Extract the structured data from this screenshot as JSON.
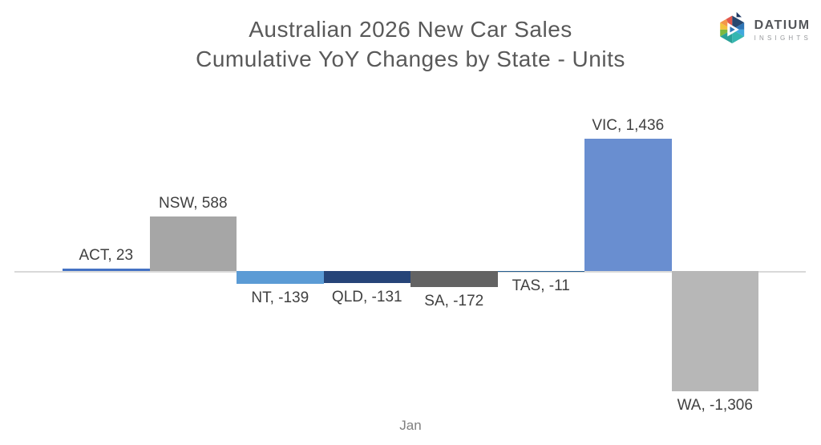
{
  "title": {
    "line1": "Australian 2026 New Car Sales",
    "line2": "Cumulative YoY Changes by State - Units"
  },
  "logo": {
    "brand": "DATIUM",
    "subbrand": "INSIGHTS"
  },
  "chart_data": {
    "type": "bar",
    "title": "Australian 2026 New Car Sales",
    "subtitle": "Cumulative YoY Changes by State - Units",
    "categories": [
      "Jan"
    ],
    "series": [
      {
        "name": "ACT",
        "values": [
          23
        ],
        "label": "ACT, 23",
        "color": "#4472C4"
      },
      {
        "name": "NSW",
        "values": [
          588
        ],
        "label": "NSW, 588",
        "color": "#A6A6A6"
      },
      {
        "name": "NT",
        "values": [
          -139
        ],
        "label": "NT, -139",
        "color": "#5B9BD5"
      },
      {
        "name": "QLD",
        "values": [
          -131
        ],
        "label": "QLD, -131",
        "color": "#264478"
      },
      {
        "name": "SA",
        "values": [
          -172
        ],
        "label": "SA, -172",
        "color": "#636363"
      },
      {
        "name": "TAS",
        "values": [
          -11
        ],
        "label": "TAS, -11",
        "color": "#255E91"
      },
      {
        "name": "VIC",
        "values": [
          1436
        ],
        "label": "VIC, 1,436",
        "color": "#698ED0"
      },
      {
        "name": "WA",
        "values": [
          -1306
        ],
        "label": "WA, -1,306",
        "color": "#B7B7B7"
      }
    ],
    "xlabel": "Jan",
    "ylabel": "",
    "legend": "none",
    "gridlines": false,
    "value_axis_visible": false,
    "data_labels": "outside_end",
    "zero_line_color": "#D9D9D9",
    "data_label_color": "#404040",
    "category_label_color": "#7F7F7F",
    "title_color": "#595959",
    "background_color": "#FFFFFF"
  }
}
